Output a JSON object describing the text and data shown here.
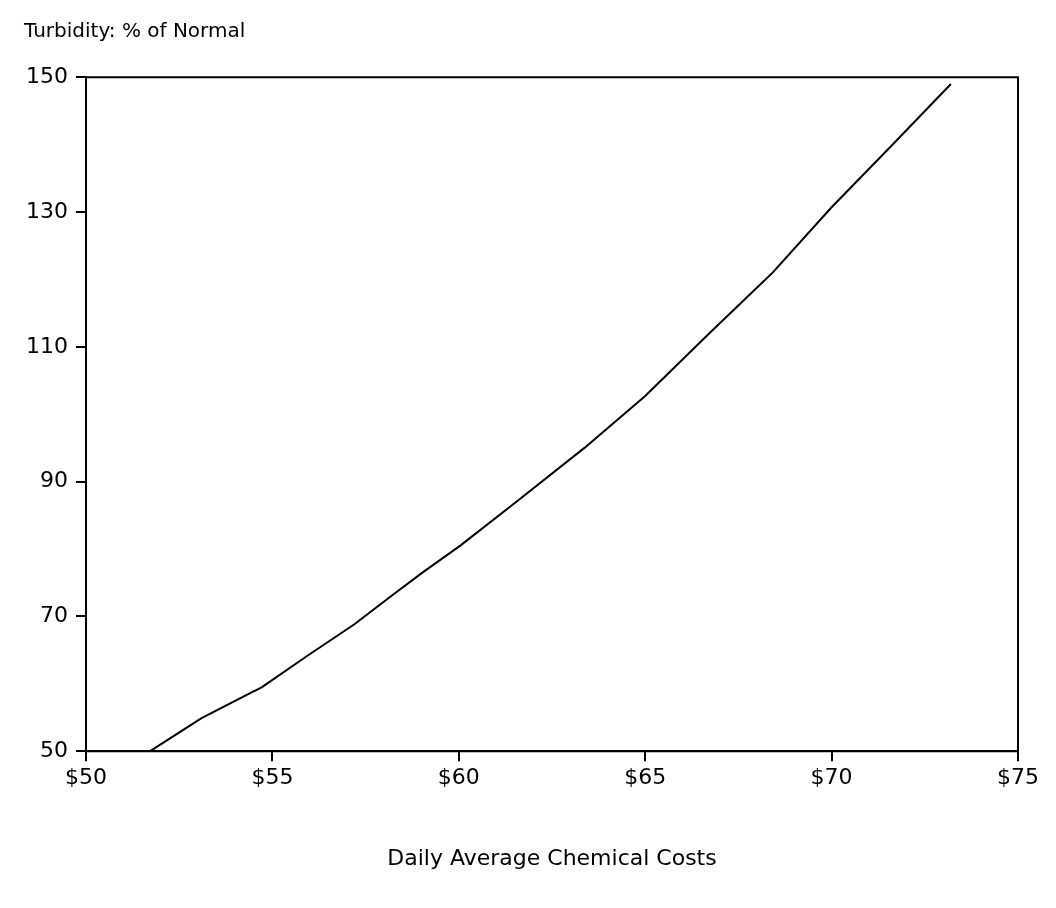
{
  "chart_data": {
    "type": "line",
    "ylabel": "Turbidity: % of Normal",
    "xlabel": "Daily Average Chemical Costs",
    "x": [
      51.72,
      53.1,
      54.72,
      55.95,
      57.19,
      58.18,
      59.05,
      60.04,
      61.52,
      63.37,
      65.0,
      66.68,
      68.4,
      70.0,
      71.6,
      73.2
    ],
    "series": [
      {
        "color": "#000000",
        "values": [
          50,
          54.9,
          59.5,
          64.2,
          68.8,
          73.0,
          76.6,
          80.5,
          86.9,
          95.0,
          102.7,
          111.8,
          120.9,
          130.7,
          139.8,
          149
        ]
      }
    ],
    "xlim": [
      50,
      75
    ],
    "xticks": [
      {
        "value": 50,
        "label": "$50"
      },
      {
        "value": 55,
        "label": "$55"
      },
      {
        "value": 60,
        "label": "$60"
      },
      {
        "value": 65,
        "label": "$65"
      },
      {
        "value": 70,
        "label": "$70"
      },
      {
        "value": 75,
        "label": "$75"
      }
    ],
    "ylim": [
      50,
      150
    ],
    "yticks": [
      50,
      70,
      90,
      110,
      130,
      150
    ],
    "grid": false,
    "legend": false,
    "marker": "none",
    "line_style": "solid"
  }
}
